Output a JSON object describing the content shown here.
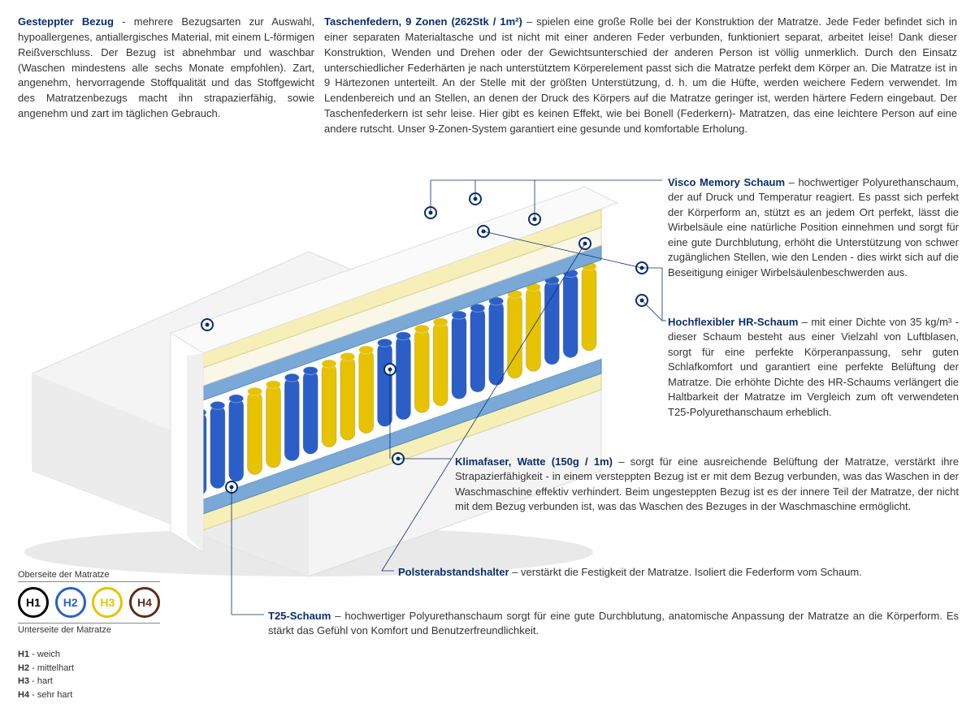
{
  "top": {
    "left": {
      "title": "Gesteppter Bezug",
      "sep": " - ",
      "body": "mehrere Bezugsarten zur Auswahl, hypoallergenes, antiallergisches Material, mit einem L-förmigen Reißverschluss. Der Bezug ist abnehmbar und waschbar (Waschen mindestens alle sechs Monate empfohlen). Zart, angenehm, hervorragende Stoffqualität und das Stoffgewicht des Matratzenbezugs macht ihn strapazierfähig, sowie angenehm und zart im täglichen Gebrauch."
    },
    "right": {
      "title": "Taschenfedern, 9 Zonen (262Stk / 1m²)",
      "sep": " – ",
      "body": "spielen eine große Rolle bei der Konstruktion der Matratze. Jede Feder befindet sich in einer separaten Materialtasche und ist nicht mit einer anderen Feder verbunden, funktioniert separat, arbeitet leise! Dank dieser Konstruktion, Wenden und Drehen oder der Gewichtsunterschied der anderen Person ist völlig unmerklich. Durch den Einsatz unterschiedlicher Federhärten je nach unterstütztem Körperelement passt sich die Matratze perfekt dem Körper an. Die Matratze ist in 9 Härtezonen unterteilt. An der Stelle mit der größten Unterstützung, d. h. um die Hüfte, werden weichere Federn verwendet. Im Lendenbereich und an Stellen, an denen der Druck des Körpers auf die Matratze geringer ist, werden härtere Federn eingebaut. Der Taschenfederkern ist sehr leise. Hier gibt es keinen Effekt, wie bei Bonell (Federkern)- Matratzen, das eine leichtere Person auf eine andere rutscht. Unser 9-Zonen-System garantiert eine gesunde und komfortable Erholung."
    }
  },
  "callouts": {
    "visco": {
      "title": "Visco Memory Schaum",
      "sep": " – ",
      "body": "hochwertiger Polyurethanschaum, der auf Druck und Temperatur reagiert. Es passt sich perfekt der Körperform an, stützt es an jedem Ort perfekt, lässt die Wirbelsäule eine natürliche Position einnehmen und sorgt für eine gute Durchblutung, erhöht die Unterstützung von schwer zugänglichen Stellen, wie den Lenden - dies wirkt sich auf die Beseitigung einiger Wirbelsäulenbeschwerden aus."
    },
    "hr": {
      "title": "Hochflexibler HR-Schaum",
      "sep": " – ",
      "body": "mit einer Dichte von 35 kg/m³ - dieser Schaum besteht aus einer Vielzahl von Luftblasen, sorgt für eine perfekte Körperanpassung, sehr guten Schlafkomfort und garantiert eine perfekte Belüftung der Matratze. Die erhöhte Dichte des HR-Schaums verlängert die Haltbarkeit der Matratze im Vergleich zum oft verwendeten T25-Polyurethanschaum erheblich."
    },
    "klima": {
      "title": "Klimafaser, Watte (150g / 1m)",
      "sep": " – ",
      "body": "sorgt für eine ausreichende Belüftung der Matratze, verstärkt ihre Strapazierfähigkeit - in einem versteppten Bezug ist er mit dem Bezug verbunden, was das Waschen in der Waschmaschine effektiv verhindert. Beim ungesteppten Bezug ist es der innere Teil der Matratze, der nicht mit dem Bezug verbunden ist, was das Waschen des Bezuges in der Waschmaschine ermöglicht."
    },
    "polster": {
      "title": "Polsterabstandshalter",
      "sep": " – ",
      "body": "verstärkt die Festigkeit der Matratze. Isoliert die Federform vom Schaum."
    },
    "t25": {
      "title": "T25-Schaum",
      "sep": " – ",
      "body": "hochwertiger Polyurethanschaum sorgt für eine gute Durchblutung, anatomische Anpassung der Matratze an die Körperform. Es stärkt das Gefühl von Komfort und Benutzerfreundlichkeit."
    }
  },
  "legend": {
    "top_label": "Oberseite der Matratze",
    "bottom_label": "Unterseite der Matratze",
    "circles": [
      {
        "code": "H1",
        "color": "#000000"
      },
      {
        "code": "H2",
        "color": "#2b5fc7"
      },
      {
        "code": "H3",
        "color": "#e6c200"
      },
      {
        "code": "H4",
        "color": "#5c2e1a"
      }
    ],
    "codes": [
      {
        "code": "H1",
        "label": "weich"
      },
      {
        "code": "H2",
        "label": "mittelhart"
      },
      {
        "code": "H3",
        "label": "hart"
      },
      {
        "code": "H4",
        "label": "sehr hart"
      }
    ]
  },
  "colors": {
    "accent": "#0a2e6b",
    "mattress_cover": "#f2f2f2",
    "foam_yellow": "#f6f0b8",
    "foam_cream": "#faf7e8",
    "felt_blue": "#7aa9d8",
    "spring_blue": "#2b5fc7",
    "spring_yellow": "#e6c200",
    "shadow": "#d0d0d0"
  }
}
